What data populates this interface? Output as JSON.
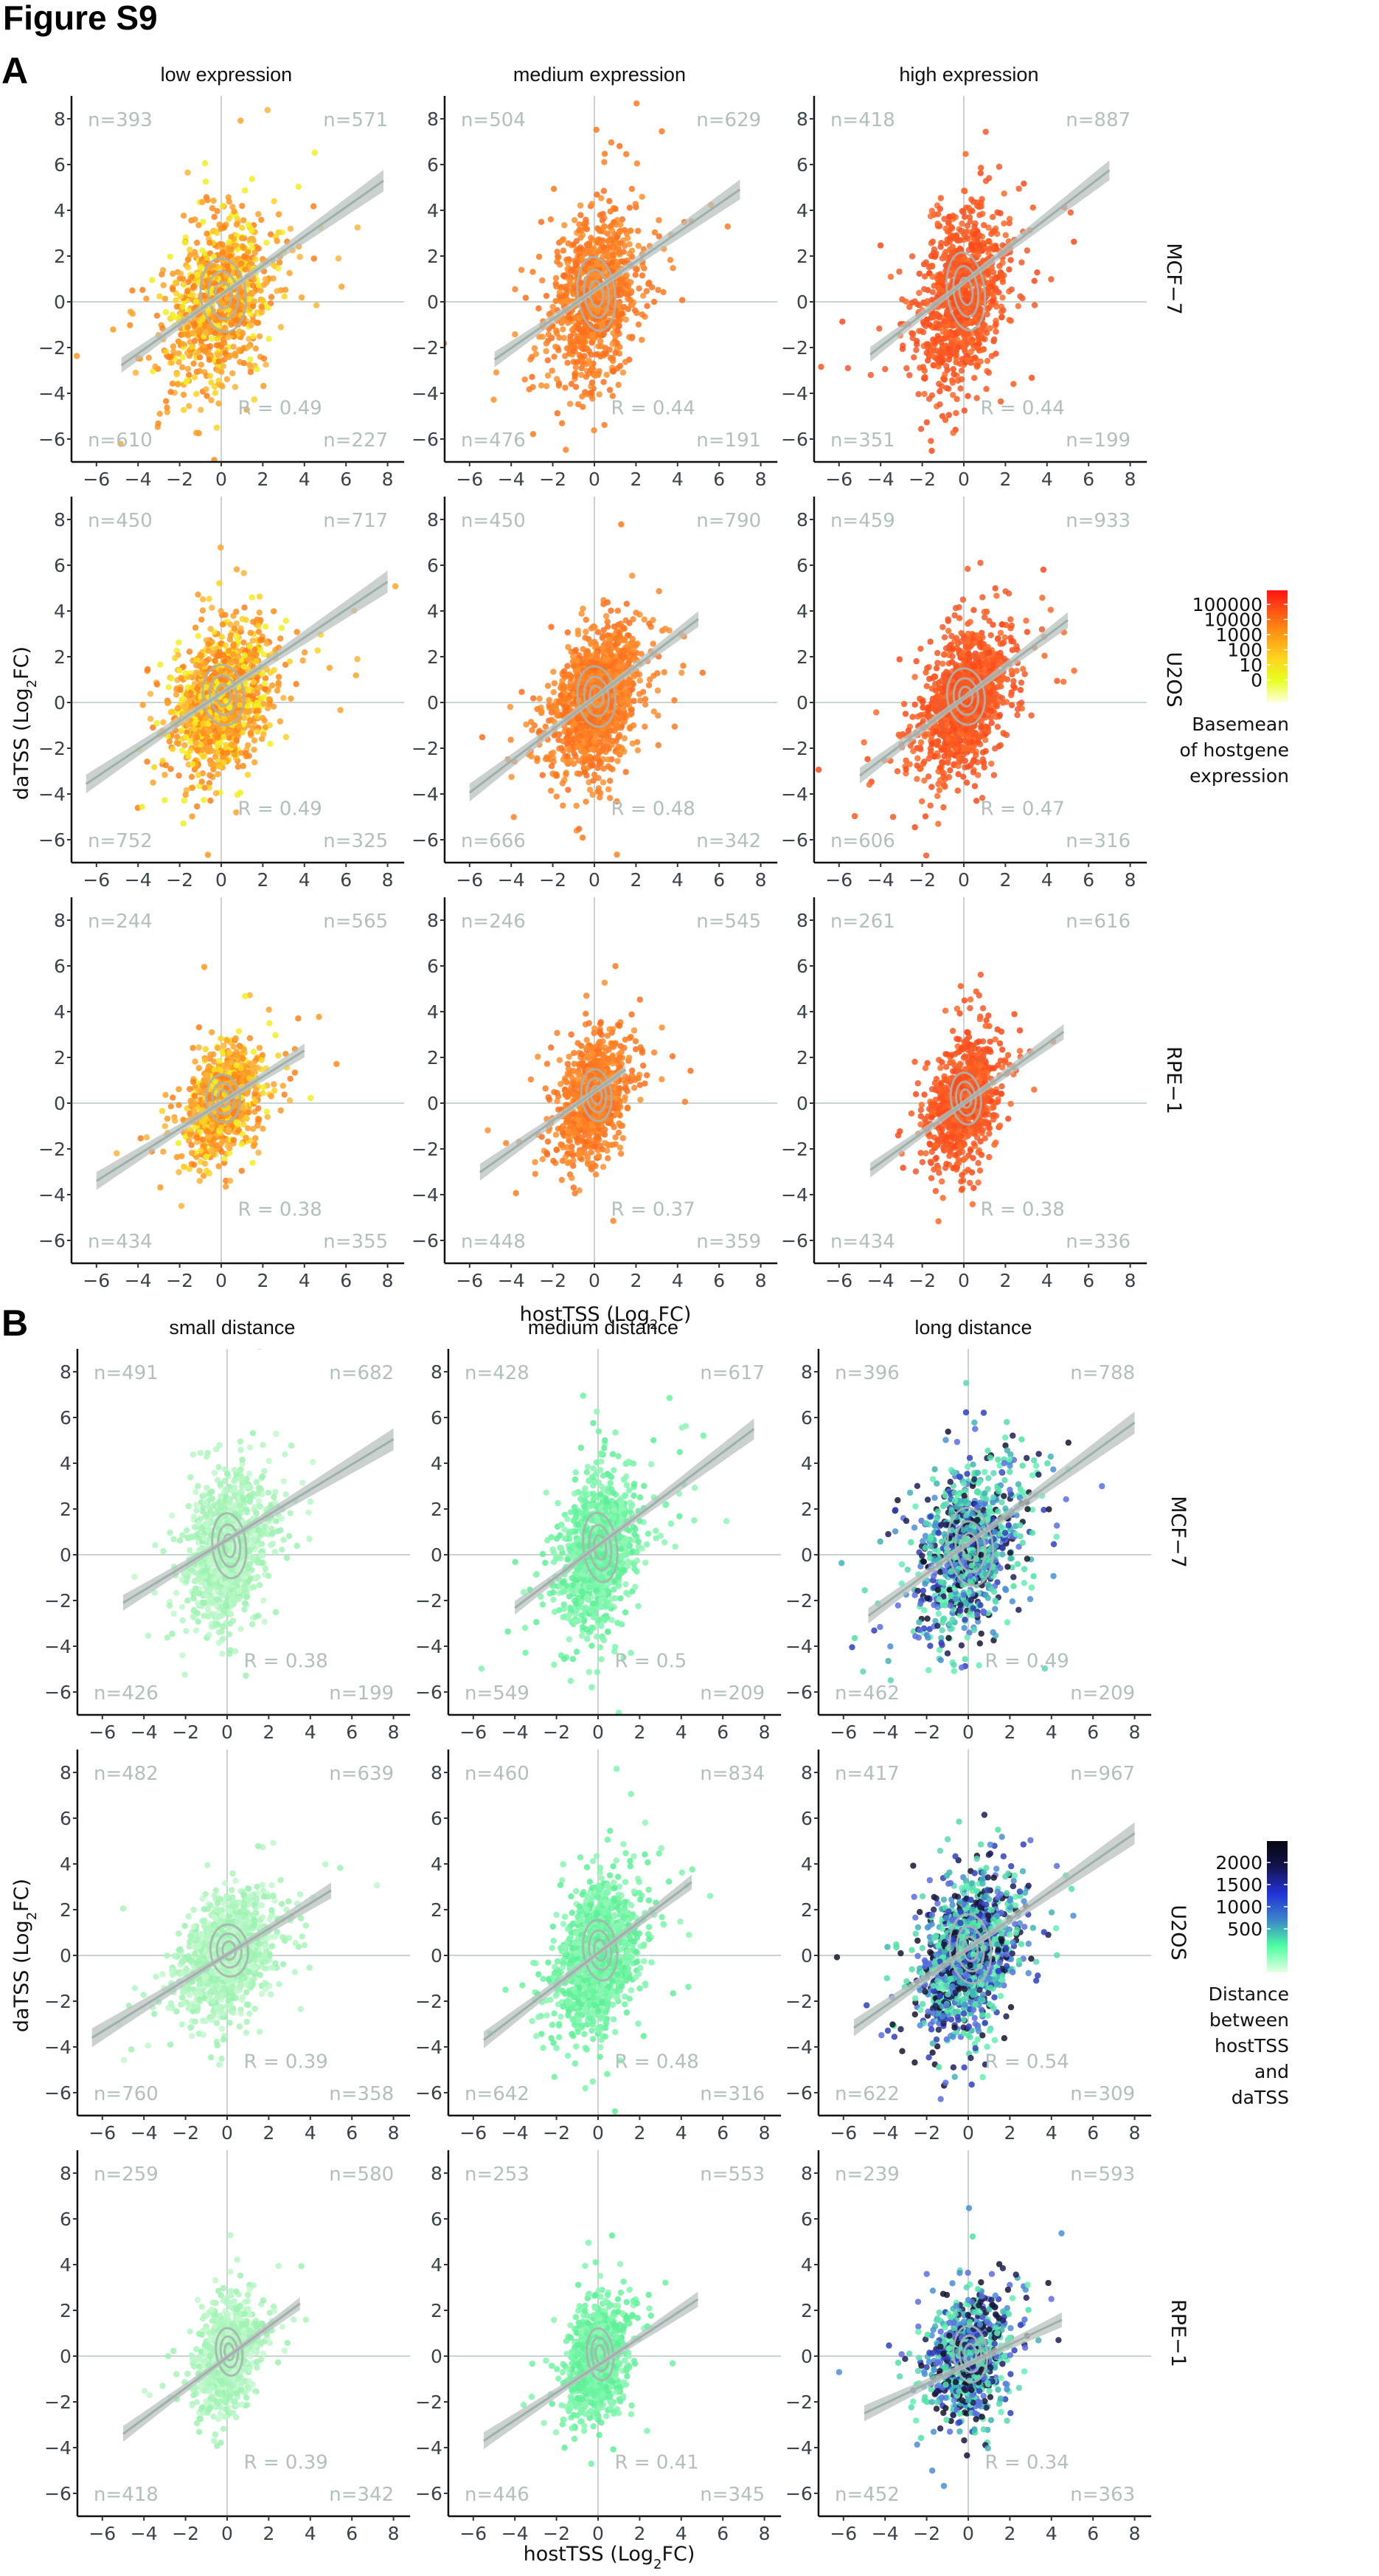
{
  "figure_title": "Figure S9",
  "chart_data": [
    {
      "panel": "A",
      "type": "scatter",
      "facet_type": "grid",
      "column_titles": [
        "low expression",
        "medium expression",
        "high expression"
      ],
      "row_labels": [
        "MCF−7",
        "U2OS",
        "RPE−1"
      ],
      "xlabel": "hostTSS (Log2FC)",
      "ylabel": "daTSS (Log2FC)",
      "xlim": [
        -7.2,
        8.8
      ],
      "ylim": [
        -7,
        9
      ],
      "xticks": [
        -6,
        -4,
        -2,
        0,
        2,
        4,
        6,
        8
      ],
      "yticks": [
        -6,
        -4,
        -2,
        0,
        2,
        4,
        6,
        8
      ],
      "reference_lines": {
        "x": 0,
        "y": 0
      },
      "overlays": [
        "linear regression with confidence band",
        "2D density contours"
      ],
      "legend": {
        "title": "Basemean of hostgene expression",
        "type": "colorbar",
        "placement": "right",
        "tick_labels": [
          "100000",
          "10000",
          "1000",
          "100",
          "10",
          "0"
        ],
        "colors": [
          "#ff1414",
          "#ff5a14",
          "#ff9a14",
          "#ffd21e",
          "#e8ff1e",
          "#ffffe0"
        ]
      },
      "panels": [
        {
          "row": "MCF−7",
          "col": "low expression",
          "n_tl": 393,
          "n_tr": 571,
          "n_bl": 610,
          "n_br": 227,
          "R": 0.49,
          "slope": 0.64,
          "intercept": 0.3,
          "sx": 1.2,
          "sy": 1.7,
          "palette": "low",
          "x_range": [
            -4.8,
            7.8
          ]
        },
        {
          "row": "MCF−7",
          "col": "medium expression",
          "n_tl": 504,
          "n_tr": 629,
          "n_bl": 476,
          "n_br": 191,
          "R": 0.44,
          "slope": 0.63,
          "intercept": 0.5,
          "sx": 1.0,
          "sy": 1.7,
          "palette": "medium",
          "x_range": [
            -4.8,
            7.0
          ]
        },
        {
          "row": "MCF−7",
          "col": "high expression",
          "n_tl": 418,
          "n_tr": 887,
          "n_bl": 351,
          "n_br": 199,
          "R": 0.44,
          "slope": 0.7,
          "intercept": 0.85,
          "sx": 1.0,
          "sy": 1.8,
          "palette": "high",
          "x_range": [
            -4.5,
            7.0
          ]
        },
        {
          "row": "U2OS",
          "col": "low expression",
          "n_tl": 450,
          "n_tr": 717,
          "n_bl": 752,
          "n_br": 325,
          "R": 0.49,
          "slope": 0.61,
          "intercept": 0.4,
          "sx": 1.1,
          "sy": 1.4,
          "palette": "low",
          "x_range": [
            -6.5,
            8.0
          ]
        },
        {
          "row": "U2OS",
          "col": "medium expression",
          "n_tl": 450,
          "n_tr": 790,
          "n_bl": 666,
          "n_br": 342,
          "R": 0.48,
          "slope": 0.69,
          "intercept": 0.2,
          "sx": 1.0,
          "sy": 1.4,
          "palette": "medium",
          "x_range": [
            -6.0,
            5.0
          ]
        },
        {
          "row": "U2OS",
          "col": "high expression",
          "n_tl": 459,
          "n_tr": 933,
          "n_bl": 606,
          "n_br": 316,
          "R": 0.47,
          "slope": 0.68,
          "intercept": 0.2,
          "sx": 1.0,
          "sy": 1.3,
          "palette": "high",
          "x_range": [
            -5.0,
            5.0
          ]
        },
        {
          "row": "RPE−1",
          "col": "low expression",
          "n_tl": 244,
          "n_tr": 565,
          "n_bl": 434,
          "n_br": 355,
          "R": 0.38,
          "slope": 0.57,
          "intercept": 0.02,
          "sx": 0.9,
          "sy": 1.1,
          "palette": "low",
          "x_range": [
            -6.0,
            4.0
          ]
        },
        {
          "row": "RPE−1",
          "col": "medium expression",
          "n_tl": 246,
          "n_tr": 545,
          "n_bl": 448,
          "n_br": 359,
          "R": 0.37,
          "slope": 0.64,
          "intercept": 0.5,
          "sx": 0.8,
          "sy": 1.2,
          "palette": "medium",
          "x_range": [
            -5.5,
            1.5
          ]
        },
        {
          "row": "RPE−1",
          "col": "high expression",
          "n_tl": 261,
          "n_tr": 616,
          "n_bl": 434,
          "n_br": 336,
          "R": 0.38,
          "slope": 0.65,
          "intercept": 0.0,
          "sx": 0.8,
          "sy": 1.2,
          "palette": "high",
          "x_range": [
            -4.5,
            4.8
          ]
        }
      ]
    },
    {
      "panel": "B",
      "type": "scatter",
      "facet_type": "grid",
      "column_titles": [
        "small distance",
        "medium distance",
        "long distance"
      ],
      "row_labels": [
        "MCF−7",
        "U2OS",
        "RPE−1"
      ],
      "xlabel": "hostTSS (Log2FC)",
      "ylabel": "daTSS (Log2FC)",
      "xlim": [
        -7.2,
        8.8
      ],
      "ylim": [
        -7,
        9
      ],
      "xticks": [
        -6,
        -4,
        -2,
        0,
        2,
        4,
        6,
        8
      ],
      "yticks": [
        -6,
        -4,
        -2,
        0,
        2,
        4,
        6,
        8
      ],
      "reference_lines": {
        "x": 0,
        "y": 0
      },
      "overlays": [
        "linear regression with confidence band",
        "2D density contours"
      ],
      "legend": {
        "title": "Distance between hostTSS and daTSS",
        "type": "colorbar",
        "placement": "right",
        "tick_labels": [
          "2000",
          "1500",
          "1000",
          "500"
        ],
        "colors": [
          "#05050f",
          "#141450",
          "#2233d8",
          "#3a86c8",
          "#4dffa0",
          "#e6ffe6"
        ]
      },
      "panels": [
        {
          "row": "MCF−7",
          "col": "small distance",
          "n_tl": 491,
          "n_tr": 682,
          "n_bl": 426,
          "n_br": 199,
          "R": 0.38,
          "slope": 0.55,
          "intercept": 0.65,
          "sx": 0.9,
          "sy": 1.5,
          "palette": "small",
          "x_range": [
            -5.0,
            8.0
          ]
        },
        {
          "row": "MCF−7",
          "col": "medium distance",
          "n_tl": 428,
          "n_tr": 617,
          "n_bl": 549,
          "n_br": 209,
          "R": 0.5,
          "slope": 0.68,
          "intercept": 0.4,
          "sx": 0.9,
          "sy": 1.6,
          "palette": "medium_d",
          "x_range": [
            -4.0,
            7.5
          ]
        },
        {
          "row": "MCF−7",
          "col": "long distance",
          "n_tl": 396,
          "n_tr": 788,
          "n_bl": 462,
          "n_br": 209,
          "R": 0.49,
          "slope": 0.66,
          "intercept": 0.5,
          "sx": 1.2,
          "sy": 1.8,
          "palette": "long",
          "x_range": [
            -4.8,
            8.0
          ]
        },
        {
          "row": "U2OS",
          "col": "small distance",
          "n_tl": 482,
          "n_tr": 639,
          "n_bl": 760,
          "n_br": 358,
          "R": 0.39,
          "slope": 0.56,
          "intercept": 0.04,
          "sx": 1.0,
          "sy": 1.2,
          "palette": "small",
          "x_range": [
            -6.5,
            5.0
          ]
        },
        {
          "row": "U2OS",
          "col": "medium distance",
          "n_tl": 460,
          "n_tr": 834,
          "n_bl": 642,
          "n_br": 316,
          "R": 0.48,
          "slope": 0.69,
          "intercept": 0.1,
          "sx": 0.9,
          "sy": 1.4,
          "palette": "medium_d",
          "x_range": [
            -5.5,
            4.5
          ]
        },
        {
          "row": "U2OS",
          "col": "long distance",
          "n_tl": 417,
          "n_tr": 967,
          "n_bl": 622,
          "n_br": 309,
          "R": 0.54,
          "slope": 0.63,
          "intercept": 0.3,
          "sx": 1.1,
          "sy": 1.6,
          "palette": "long",
          "x_range": [
            -5.5,
            8.0
          ]
        },
        {
          "row": "RPE−1",
          "col": "small distance",
          "n_tl": 259,
          "n_tr": 580,
          "n_bl": 418,
          "n_br": 342,
          "R": 0.39,
          "slope": 0.67,
          "intercept": -0.05,
          "sx": 0.7,
          "sy": 1.1,
          "palette": "small",
          "x_range": [
            -5.0,
            3.5
          ]
        },
        {
          "row": "RPE−1",
          "col": "medium distance",
          "n_tl": 253,
          "n_tr": 553,
          "n_bl": 446,
          "n_br": 345,
          "R": 0.41,
          "slope": 0.6,
          "intercept": -0.4,
          "sx": 0.7,
          "sy": 1.2,
          "palette": "medium_d",
          "x_range": [
            -5.5,
            4.8
          ]
        },
        {
          "row": "RPE−1",
          "col": "long distance",
          "n_tl": 239,
          "n_tr": 593,
          "n_bl": 452,
          "n_br": 363,
          "R": 0.34,
          "slope": 0.43,
          "intercept": -0.35,
          "sx": 0.9,
          "sy": 1.3,
          "palette": "long",
          "x_range": [
            -5.0,
            4.5
          ]
        }
      ]
    }
  ],
  "palettes": {
    "low": [
      "#ff8c1a",
      "#ff9a22",
      "#ffa42c",
      "#ffb43a",
      "#ffd21e",
      "#f2f01e",
      "#ff7f1a"
    ],
    "medium": [
      "#ff7a20",
      "#ff8428",
      "#ff6e1e",
      "#ff902e"
    ],
    "high": [
      "#ff5a1e",
      "#ff4a1a",
      "#ff6a28",
      "#f25a2a"
    ],
    "small": [
      "#a8f5b8",
      "#b4f7c4",
      "#c2f8cc",
      "#9cf2b0"
    ],
    "medium_d": [
      "#6cf5a0",
      "#7df7ab",
      "#5ef096",
      "#8ef6b4"
    ],
    "long": [
      "#5ad8b4",
      "#4fe3a6",
      "#3fb5b5",
      "#4a8fd6",
      "#5a6ee0",
      "#2f3fbd",
      "#1c1c58",
      "#14142e",
      "#62f0b2"
    ]
  },
  "labels": {
    "panel_A": "A",
    "panel_B": "B",
    "r_prefix": "R = ",
    "n_prefix": "n="
  }
}
